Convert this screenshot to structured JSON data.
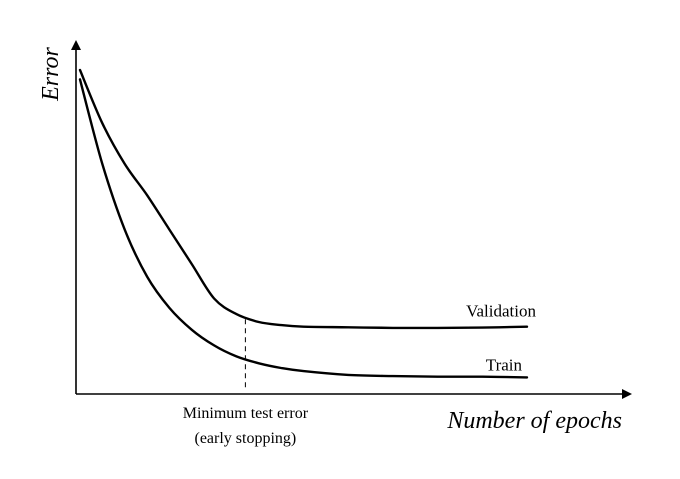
{
  "chart_data": {
    "type": "line",
    "title": "",
    "xlabel": "Number of epochs",
    "ylabel": "Error",
    "xlim": [
      0,
      100
    ],
    "ylim": [
      0,
      100
    ],
    "grid": false,
    "legend": "none",
    "series": [
      {
        "name": "Validation",
        "color": "#000000",
        "x": [
          0,
          5,
          10,
          15,
          20,
          25,
          30,
          35,
          40,
          45,
          50,
          60,
          70,
          80,
          90,
          100
        ],
        "y": [
          100,
          83,
          70,
          60,
          49,
          38,
          27,
          22,
          19.5,
          18.5,
          18,
          17.8,
          17.6,
          17.6,
          17.7,
          18
        ]
      },
      {
        "name": "Train",
        "color": "#000000",
        "x": [
          0,
          5,
          10,
          15,
          20,
          25,
          30,
          35,
          40,
          45,
          50,
          60,
          70,
          80,
          90,
          100
        ],
        "y": [
          97,
          70,
          49,
          34,
          24,
          17,
          12,
          8.5,
          6.3,
          4.8,
          3.8,
          2.6,
          2.2,
          2.0,
          2.0,
          1.8
        ]
      }
    ],
    "annotations": [
      {
        "text": [
          "Minimum test error",
          "(early stopping)"
        ],
        "x": 37,
        "style": "dashed-vertical"
      }
    ],
    "ink_color": "#000000"
  }
}
